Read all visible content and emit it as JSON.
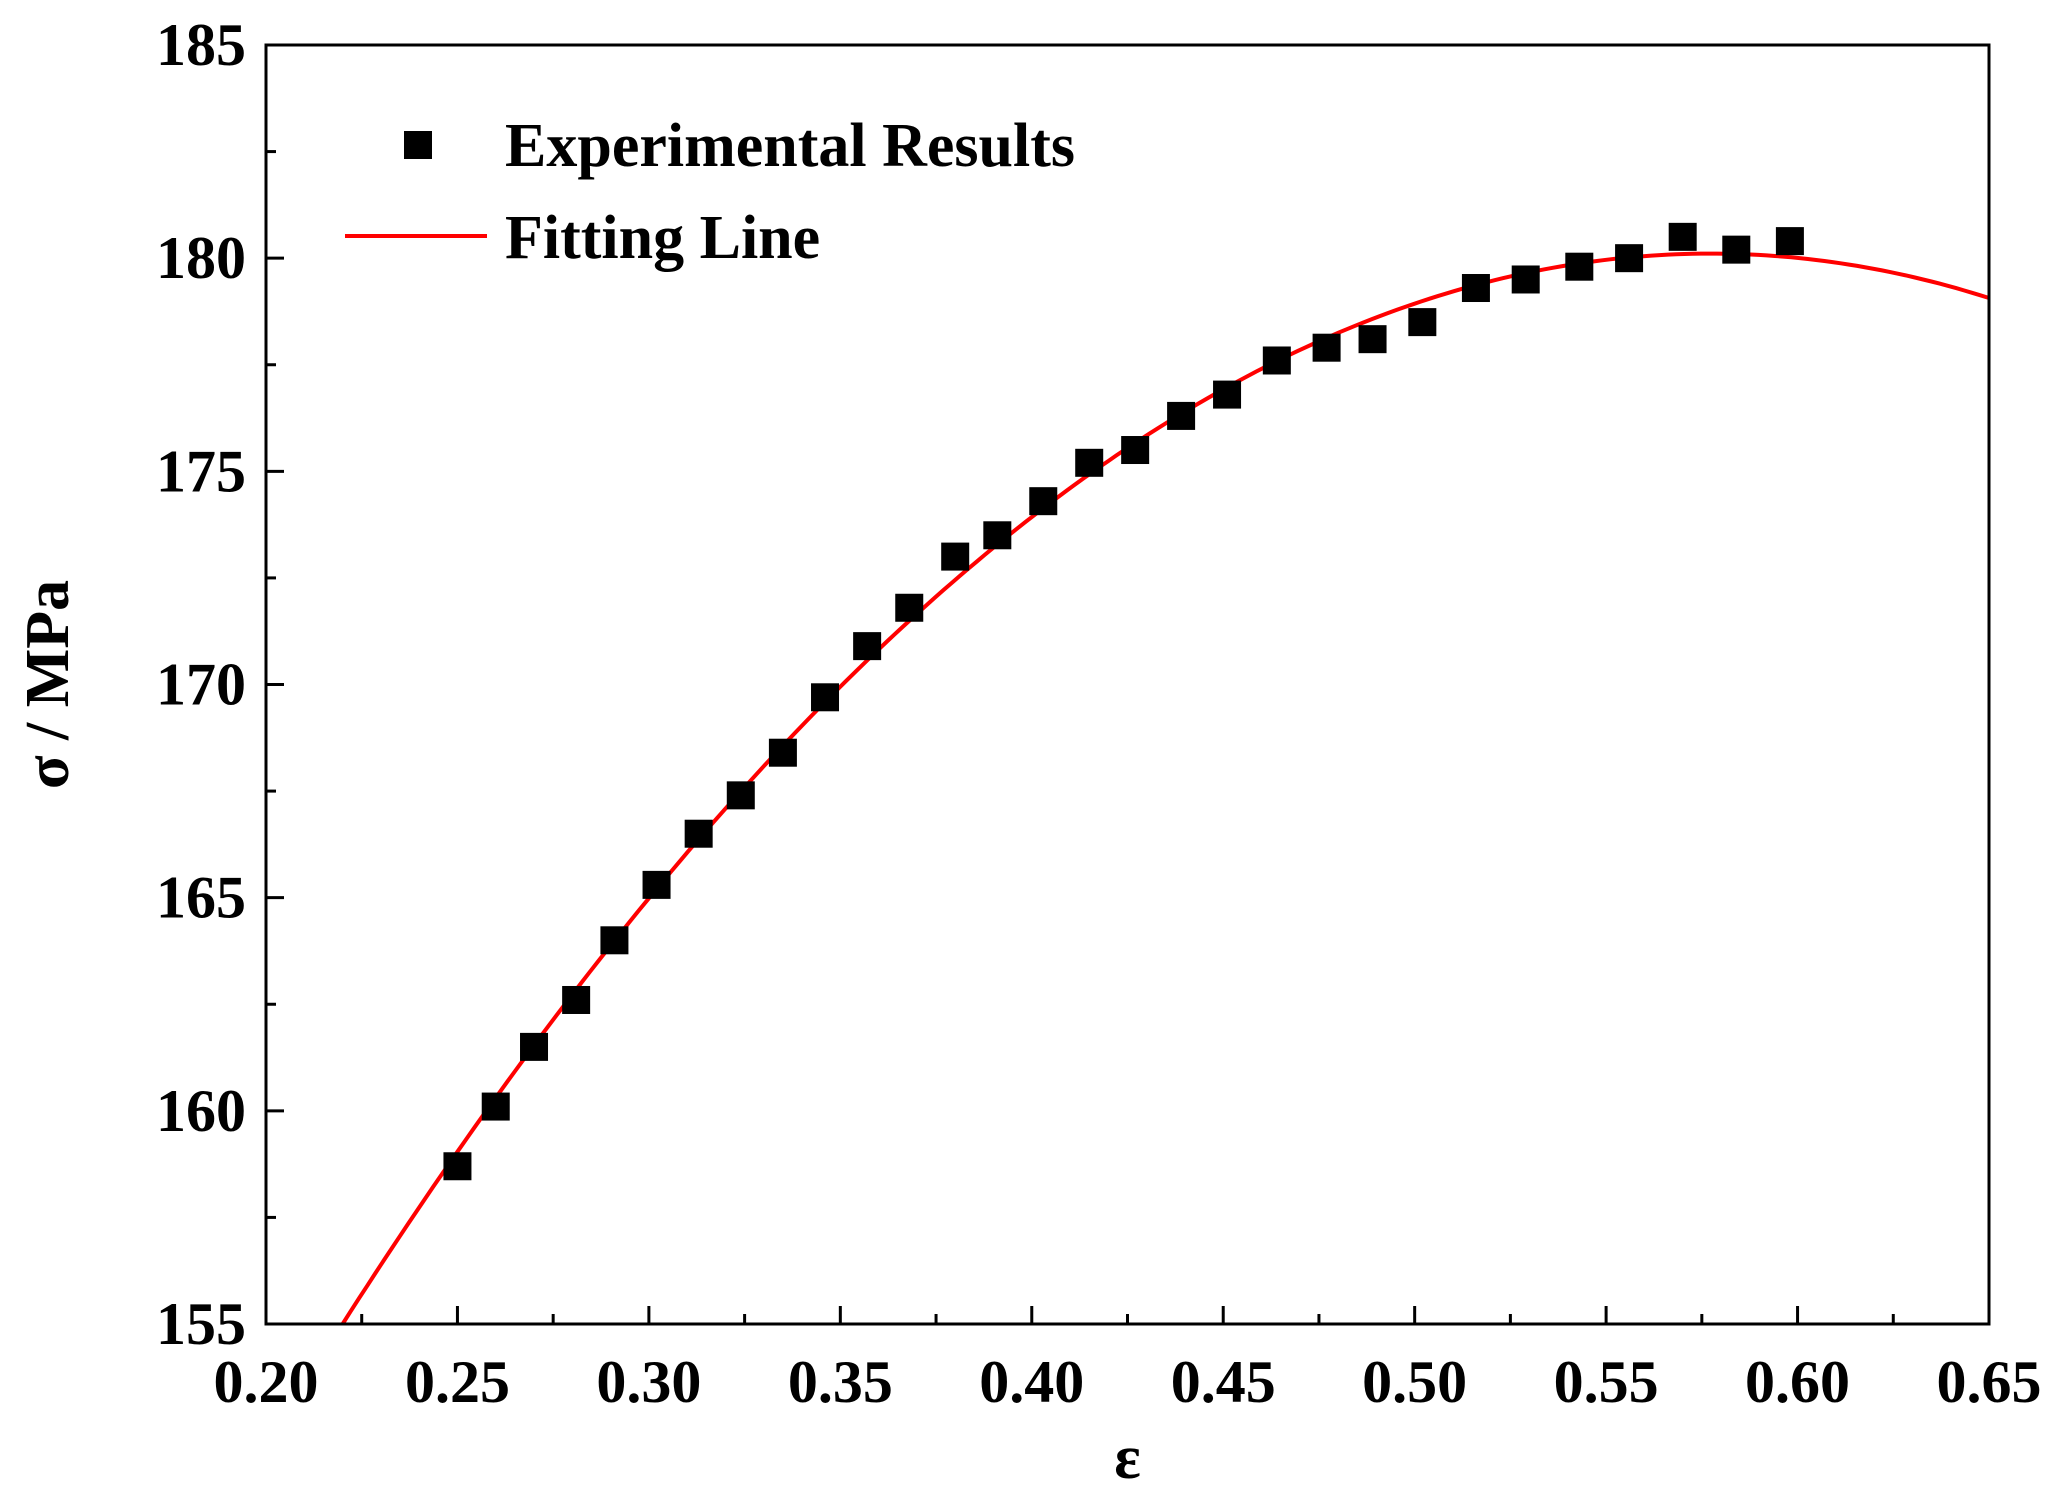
{
  "chart_data": {
    "type": "scatter",
    "title": "",
    "xlabel": "ε",
    "ylabel": "σ / MPa",
    "xlim": [
      0.2,
      0.65
    ],
    "ylim": [
      155,
      185
    ],
    "x_ticks": [
      0.2,
      0.25,
      0.3,
      0.35,
      0.4,
      0.45,
      0.5,
      0.55,
      0.6,
      0.65
    ],
    "x_tick_labels": [
      "0.20",
      "0.25",
      "0.30",
      "0.35",
      "0.40",
      "0.45",
      "0.50",
      "0.55",
      "0.60",
      "0.65"
    ],
    "y_ticks": [
      155,
      160,
      165,
      170,
      175,
      180,
      185
    ],
    "y_tick_labels": [
      "155",
      "160",
      "165",
      "170",
      "175",
      "180",
      "185"
    ],
    "legend_position": "top-left",
    "series": [
      {
        "name": "Experimental Results",
        "kind": "scatter",
        "marker": "square",
        "color": "#000000",
        "x": [
          0.25,
          0.26,
          0.27,
          0.281,
          0.291,
          0.302,
          0.313,
          0.324,
          0.335,
          0.346,
          0.357,
          0.368,
          0.38,
          0.391,
          0.403,
          0.415,
          0.427,
          0.439,
          0.451,
          0.464,
          0.477,
          0.489,
          0.502,
          0.516,
          0.529,
          0.543,
          0.556,
          0.57,
          0.584,
          0.598
        ],
        "y": [
          158.7,
          160.1,
          161.5,
          162.6,
          164.0,
          165.3,
          166.5,
          167.4,
          168.4,
          169.7,
          170.9,
          171.8,
          173.0,
          173.5,
          174.3,
          175.2,
          175.5,
          176.3,
          176.8,
          177.6,
          177.9,
          178.1,
          178.5,
          179.3,
          179.5,
          179.8,
          180.0,
          180.5,
          180.2,
          180.4
        ]
      },
      {
        "name": "Fitting Line",
        "kind": "line",
        "color": "#ff0000",
        "x": [
          0.22,
          0.25,
          0.3,
          0.35,
          0.4,
          0.45,
          0.5,
          0.55,
          0.58,
          0.6,
          0.65
        ],
        "y": [
          155.0,
          159.0,
          165.1,
          169.8,
          174.0,
          177.0,
          178.9,
          179.9,
          180.1,
          180.0,
          179.1
        ]
      }
    ]
  }
}
